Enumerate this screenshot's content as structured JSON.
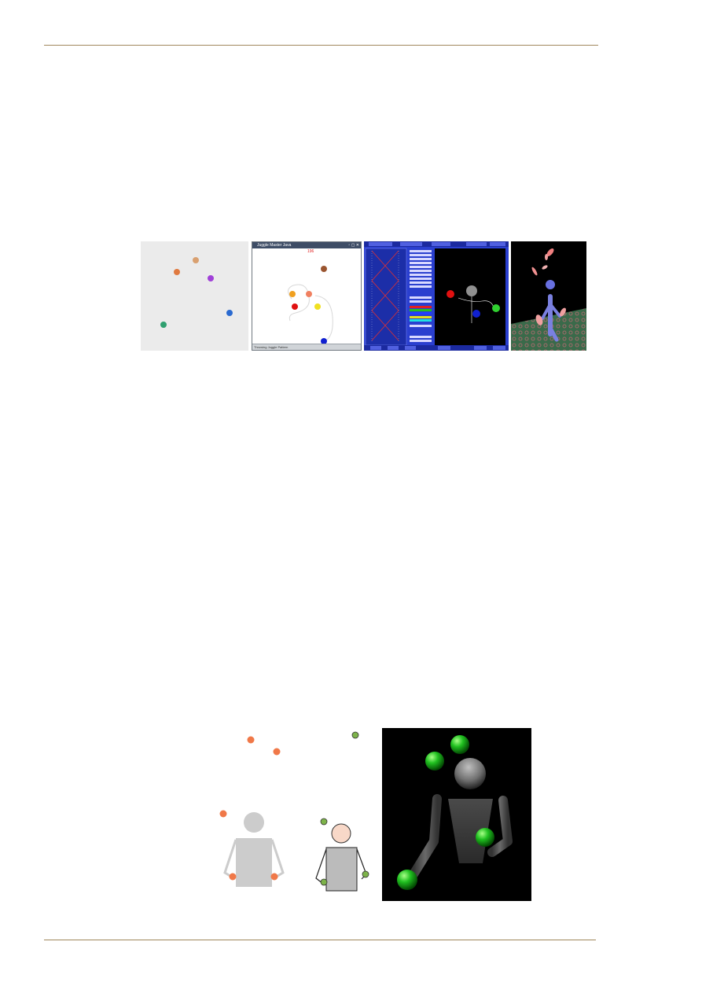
{
  "colors": {
    "rule": "#a0875c",
    "orange_ball": "#f07848",
    "green_ball": "#7db34a",
    "panel_grey_bg": "#ebebeb",
    "jugglemaster_blue": "#2a3fcf"
  },
  "figure_top": {
    "panel2": {
      "title": "Juggle Master Java",
      "count": "196",
      "status": "Throwing Juggle Pattern"
    }
  },
  "figure_bottom": {}
}
